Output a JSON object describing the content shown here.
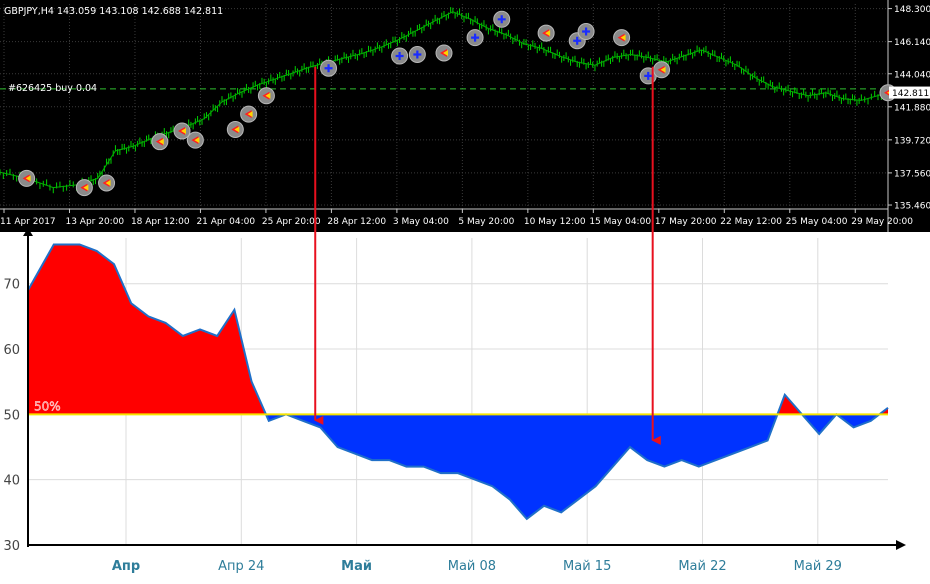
{
  "chart_data": [
    {
      "type": "line",
      "symbol": "GBPJPY,H4",
      "ohlc": {
        "open": "143.059",
        "high": "143.108",
        "low": "142.688",
        "close": "142.811"
      },
      "order_label": "#626425 buy 0.04",
      "current_price": "142.811",
      "ylim": [
        135.2,
        148.6
      ],
      "y_ticks": [
        135.46,
        137.56,
        139.72,
        141.88,
        144.04,
        146.14,
        148.3
      ],
      "y_tick_labels": [
        "135.460",
        "137.560",
        "139.720",
        "141.880",
        "144.040",
        "146.140",
        "148.300"
      ],
      "x_tick_labels": [
        "11 Apr 2017",
        "13 Apr 20:00",
        "18 Apr 12:00",
        "21 Apr 04:00",
        "25 Apr 20:00",
        "28 Apr 12:00",
        "3 May 04:00",
        "5 May 20:00",
        "10 May 12:00",
        "15 May 04:00",
        "17 May 20:00",
        "22 May 12:00",
        "25 May 04:00",
        "29 May 20:00"
      ],
      "order_line_price": 143.05,
      "x": [
        0,
        0.03,
        0.06,
        0.09,
        0.11,
        0.13,
        0.15,
        0.17,
        0.19,
        0.21,
        0.23,
        0.25,
        0.27,
        0.29,
        0.31,
        0.33,
        0.35,
        0.37,
        0.39,
        0.41,
        0.43,
        0.45,
        0.47,
        0.49,
        0.51,
        0.53,
        0.55,
        0.57,
        0.59,
        0.61,
        0.63,
        0.65,
        0.67,
        0.69,
        0.71,
        0.73,
        0.75,
        0.77,
        0.79,
        0.81,
        0.83,
        0.85,
        0.87,
        0.89,
        0.91,
        0.93,
        0.95,
        0.97,
        1.0
      ],
      "close": [
        137.6,
        137.2,
        136.6,
        136.8,
        137.2,
        139.0,
        139.3,
        139.8,
        140.2,
        140.6,
        141.1,
        142.2,
        142.8,
        143.3,
        143.7,
        144.1,
        144.5,
        144.8,
        145.1,
        145.4,
        145.8,
        146.3,
        146.9,
        147.5,
        148.1,
        147.6,
        147.0,
        146.6,
        146.0,
        145.7,
        145.2,
        144.8,
        144.6,
        145.1,
        145.3,
        145.1,
        144.8,
        145.2,
        145.6,
        145.1,
        144.6,
        143.8,
        143.2,
        142.9,
        142.6,
        142.8,
        142.4,
        142.3,
        142.8
      ],
      "signals": [
        {
          "x": 0.03,
          "price": 137.2,
          "side": "sell"
        },
        {
          "x": 0.095,
          "price": 136.6,
          "side": "sell"
        },
        {
          "x": 0.12,
          "price": 136.9,
          "side": "sell"
        },
        {
          "x": 0.18,
          "price": 139.6,
          "side": "sell"
        },
        {
          "x": 0.205,
          "price": 140.3,
          "side": "sell"
        },
        {
          "x": 0.22,
          "price": 139.7,
          "side": "sell"
        },
        {
          "x": 0.265,
          "price": 140.4,
          "side": "sell"
        },
        {
          "x": 0.28,
          "price": 141.4,
          "side": "sell"
        },
        {
          "x": 0.3,
          "price": 142.6,
          "side": "sell"
        },
        {
          "x": 0.37,
          "price": 144.4,
          "side": "buy"
        },
        {
          "x": 0.45,
          "price": 145.2,
          "side": "buy"
        },
        {
          "x": 0.47,
          "price": 145.3,
          "side": "buy"
        },
        {
          "x": 0.5,
          "price": 145.4,
          "side": "sell"
        },
        {
          "x": 0.535,
          "price": 146.4,
          "side": "buy"
        },
        {
          "x": 0.565,
          "price": 147.6,
          "side": "buy"
        },
        {
          "x": 0.615,
          "price": 146.7,
          "side": "sell"
        },
        {
          "x": 0.65,
          "price": 146.2,
          "side": "buy"
        },
        {
          "x": 0.66,
          "price": 146.8,
          "side": "buy"
        },
        {
          "x": 0.7,
          "price": 146.4,
          "side": "sell"
        },
        {
          "x": 0.73,
          "price": 143.9,
          "side": "buy"
        },
        {
          "x": 0.745,
          "price": 144.3,
          "side": "sell"
        },
        {
          "x": 1.0,
          "price": 142.8,
          "side": "sell"
        }
      ]
    },
    {
      "type": "area",
      "y_tick_labels": [
        "30",
        "40",
        "50",
        "60",
        "70"
      ],
      "ylim": [
        30,
        77
      ],
      "x_tick_labels": [
        "Апр",
        "Апр 24",
        "Май",
        "Май 08",
        "Май 15",
        "Май 22",
        "Май 29"
      ],
      "bold_x_ticks": [
        "Апр",
        "Май"
      ],
      "threshold": 50,
      "threshold_label": "50%",
      "x": [
        0,
        0.03,
        0.06,
        0.08,
        0.1,
        0.12,
        0.14,
        0.16,
        0.18,
        0.2,
        0.22,
        0.24,
        0.26,
        0.28,
        0.3,
        0.32,
        0.34,
        0.36,
        0.38,
        0.4,
        0.42,
        0.44,
        0.46,
        0.48,
        0.5,
        0.52,
        0.54,
        0.56,
        0.58,
        0.6,
        0.62,
        0.64,
        0.66,
        0.68,
        0.7,
        0.72,
        0.74,
        0.76,
        0.78,
        0.8,
        0.82,
        0.84,
        0.86,
        0.88,
        0.9,
        0.92,
        0.94,
        0.96,
        0.98,
        1.0
      ],
      "values": [
        69,
        76,
        76,
        75,
        73,
        67,
        65,
        64,
        62,
        63,
        62,
        66,
        55,
        49,
        50,
        49,
        48,
        45,
        44,
        43,
        43,
        42,
        42,
        41,
        41,
        40,
        39,
        37,
        34,
        36,
        35,
        37,
        39,
        42,
        45,
        43,
        42,
        43,
        42,
        43,
        44,
        45,
        46,
        53,
        50,
        47,
        50,
        48,
        49,
        51
      ],
      "fill_above": "#ff0000",
      "fill_below": "#0033ff",
      "line_color": "#1f6fc8"
    }
  ],
  "arrows": [
    {
      "from_x": 0.355,
      "to_x": 0.337
    },
    {
      "from_x": 0.735,
      "to_x": 0.725
    }
  ]
}
